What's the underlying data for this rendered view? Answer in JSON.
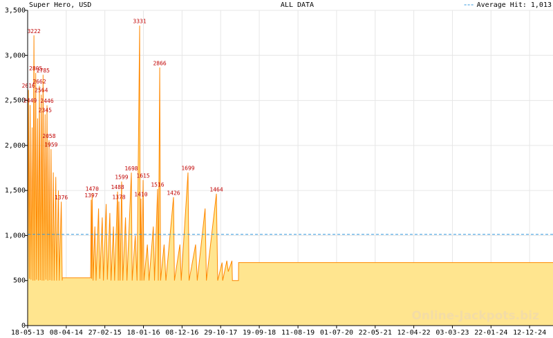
{
  "chart_data": {
    "type": "area",
    "title": "ALL DATA",
    "subtitle": "Super Hero, USD",
    "watermark": "Online-Jackpots.biz",
    "average": {
      "value": 1013,
      "label": "1,013"
    },
    "average_name": "Average Hit:",
    "average_color": "#3399dd",
    "line_color": "#ff8800",
    "fill_color": "#ffe58f",
    "label_color": "#c00000",
    "grid": true,
    "ylim": [
      0,
      3500
    ],
    "yticks": [
      0,
      500,
      {
        "value": 1000,
        "label": "1,000"
      },
      {
        "value": 1500,
        "label": "1,500"
      },
      {
        "value": 2000,
        "label": "2,000"
      },
      {
        "value": 2500,
        "label": "2,500"
      },
      {
        "value": 3000,
        "label": "3,000"
      },
      {
        "value": 3500,
        "label": "3,500"
      }
    ],
    "xlim": [
      "2013-05-18",
      "2025-06-27"
    ],
    "xticks": [
      {
        "value": "2013-05-18",
        "label": "18-05-13"
      },
      {
        "value": "2014-04-08",
        "label": "08-04-14"
      },
      {
        "value": "2015-02-27",
        "label": "27-02-15"
      },
      {
        "value": "2016-01-18",
        "label": "18-01-16"
      },
      {
        "value": "2016-12-08",
        "label": "08-12-16"
      },
      {
        "value": "2017-10-29",
        "label": "29-10-17"
      },
      {
        "value": "2018-09-19",
        "label": "19-09-18"
      },
      {
        "value": "2019-08-11",
        "label": "11-08-19"
      },
      {
        "value": "2020-07-01",
        "label": "01-07-20"
      },
      {
        "value": "2021-05-22",
        "label": "22-05-21"
      },
      {
        "value": "2022-04-12",
        "label": "12-04-22"
      },
      {
        "value": "2023-03-03",
        "label": "03-03-23"
      },
      {
        "value": "2024-01-22",
        "label": "22-01-24"
      },
      {
        "value": "2024-12-12",
        "label": "12-12-24"
      }
    ],
    "x": [
      "2013-05-18",
      "2013-05-25",
      "2013-06-01",
      "2013-06-08",
      "2013-06-15",
      "2013-06-25",
      "2013-07-02",
      "2013-07-10",
      "2013-07-17",
      "2013-07-25",
      "2013-08-01",
      "2013-08-10",
      "2013-08-17",
      "2013-08-25",
      "2013-09-01",
      "2013-09-10",
      "2013-09-17",
      "2013-09-25",
      "2013-10-02",
      "2013-10-12",
      "2013-10-19",
      "2013-10-28",
      "2013-11-04",
      "2013-11-14",
      "2013-11-21",
      "2013-12-01",
      "2013-12-08",
      "2013-12-20",
      "2013-12-27",
      "2014-01-10",
      "2014-01-17",
      "2014-02-01",
      "2014-02-08",
      "2014-02-25",
      "2014-03-05",
      "2014-03-06",
      "2014-10-30",
      "2014-11-04",
      "2014-11-08",
      "2014-11-12",
      "2014-11-20",
      "2014-12-05",
      "2014-12-15",
      "2015-01-05",
      "2015-01-15",
      "2015-02-05",
      "2015-02-15",
      "2015-03-10",
      "2015-03-20",
      "2015-04-10",
      "2015-04-20",
      "2015-05-10",
      "2015-05-20",
      "2015-06-14",
      "2015-06-20",
      "2015-06-25",
      "2015-07-05",
      "2015-07-18",
      "2015-07-28",
      "2015-08-20",
      "2015-09-01",
      "2015-10-08",
      "2015-10-15",
      "2015-11-10",
      "2015-11-25",
      "2015-12-17",
      "2015-12-22",
      "2015-12-28",
      "2016-01-05",
      "2016-01-15",
      "2016-01-22",
      "2016-02-20",
      "2016-03-05",
      "2016-04-10",
      "2016-04-20",
      "2016-05-16",
      "2016-05-22",
      "2016-06-03",
      "2016-06-10",
      "2016-07-10",
      "2016-07-25",
      "2016-09-27",
      "2016-10-05",
      "2016-11-20",
      "2016-12-01",
      "2017-01-27",
      "2017-02-05",
      "2017-04-01",
      "2017-04-15",
      "2017-06-20",
      "2017-07-01",
      "2017-09-23",
      "2017-10-04",
      "2017-11-10",
      "2017-11-15",
      "2017-12-20",
      "2018-01-01",
      "2018-02-01",
      "2018-02-05",
      "2018-03-28",
      "2018-03-29",
      "2025-06-27"
    ],
    "values": [
      500,
      2616,
      520,
      2449,
      510,
      2200,
      500,
      3222,
      500,
      2805,
      510,
      2300,
      500,
      2662,
      505,
      2564,
      500,
      2785,
      500,
      2345,
      510,
      2446,
      500,
      2058,
      505,
      1959,
      500,
      1700,
      500,
      1650,
      500,
      1500,
      500,
      1376,
      500,
      530,
      530,
      1397,
      520,
      1470,
      500,
      1100,
      500,
      1300,
      520,
      1200,
      500,
      1350,
      510,
      1250,
      500,
      1100,
      500,
      1488,
      500,
      1378,
      500,
      1599,
      500,
      1200,
      500,
      1698,
      500,
      1000,
      500,
      3331,
      500,
      1410,
      500,
      1615,
      500,
      900,
      500,
      1100,
      500,
      1516,
      500,
      2866,
      500,
      900,
      500,
      1426,
      500,
      900,
      500,
      1699,
      500,
      900,
      500,
      1300,
      500,
      1464,
      500,
      700,
      500,
      720,
      600,
      720,
      500,
      500,
      700,
      700
    ],
    "value_labels": [
      null,
      "2616",
      null,
      "2449",
      null,
      null,
      null,
      "3222",
      null,
      "2805",
      null,
      null,
      null,
      "2662",
      null,
      "2564",
      null,
      "2785",
      null,
      "2345",
      null,
      "2446",
      null,
      "2058",
      null,
      "1959",
      null,
      null,
      null,
      null,
      null,
      null,
      null,
      "1376",
      null,
      null,
      null,
      "1397",
      null,
      "1470",
      null,
      null,
      null,
      null,
      null,
      null,
      null,
      null,
      null,
      null,
      null,
      null,
      null,
      "1488",
      null,
      "1378",
      null,
      "1599",
      null,
      null,
      null,
      "1698",
      null,
      null,
      null,
      "3331",
      null,
      "1410",
      null,
      "1615",
      null,
      null,
      null,
      null,
      null,
      "1516",
      null,
      "2866",
      null,
      null,
      null,
      "1426",
      null,
      null,
      null,
      "1699",
      null,
      null,
      null,
      null,
      null,
      "1464",
      null,
      null,
      null,
      null,
      null,
      null,
      null,
      null,
      null,
      null
    ]
  }
}
